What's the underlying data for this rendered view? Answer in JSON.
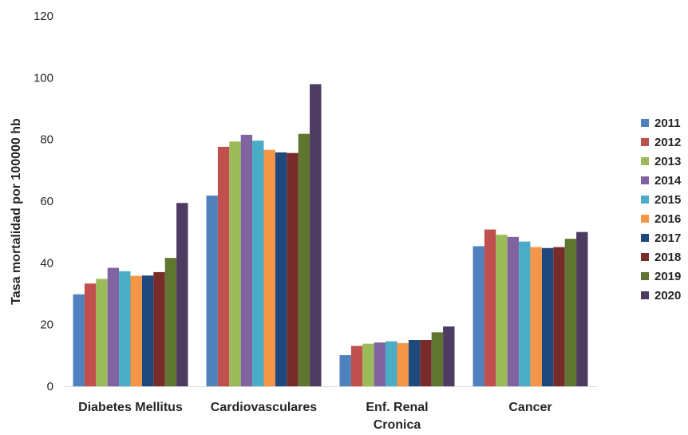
{
  "chart_data": {
    "type": "bar",
    "title": "",
    "xlabel": "",
    "ylabel": "Tasa mortalidad por 100000 hb",
    "ylim": [
      0,
      120
    ],
    "yticks": [
      0,
      20,
      40,
      60,
      80,
      100,
      120
    ],
    "grid": false,
    "legend_position": "right",
    "categories": [
      [
        "Diabetes Mellitus"
      ],
      [
        "Cardiovasculares"
      ],
      [
        "Enf. Renal",
        "Cronica"
      ],
      [
        "Cancer"
      ]
    ],
    "series": [
      {
        "name": "2011",
        "color": "#4f81bd",
        "values": [
          29.8,
          61.8,
          10.1,
          45.4
        ]
      },
      {
        "name": "2012",
        "color": "#c0504d",
        "values": [
          33.3,
          77.6,
          13.1,
          50.8
        ]
      },
      {
        "name": "2013",
        "color": "#9bbb59",
        "values": [
          34.8,
          79.3,
          13.8,
          49.1
        ]
      },
      {
        "name": "2014",
        "color": "#8064a2",
        "values": [
          38.4,
          81.5,
          14.2,
          48.4
        ]
      },
      {
        "name": "2015",
        "color": "#4bacc6",
        "values": [
          37.3,
          79.6,
          14.6,
          46.9
        ]
      },
      {
        "name": "2016",
        "color": "#f79646",
        "values": [
          35.8,
          76.6,
          14.0,
          45.1
        ]
      },
      {
        "name": "2017",
        "color": "#1f497d",
        "values": [
          35.9,
          75.8,
          15.0,
          44.8
        ]
      },
      {
        "name": "2018",
        "color": "#772c2a",
        "values": [
          37.0,
          75.6,
          15.0,
          45.1
        ]
      },
      {
        "name": "2019",
        "color": "#5f7530",
        "values": [
          41.6,
          81.8,
          17.5,
          47.8
        ]
      },
      {
        "name": "2020",
        "color": "#4d3b62",
        "values": [
          59.4,
          97.9,
          19.4,
          50.0
        ]
      }
    ]
  }
}
